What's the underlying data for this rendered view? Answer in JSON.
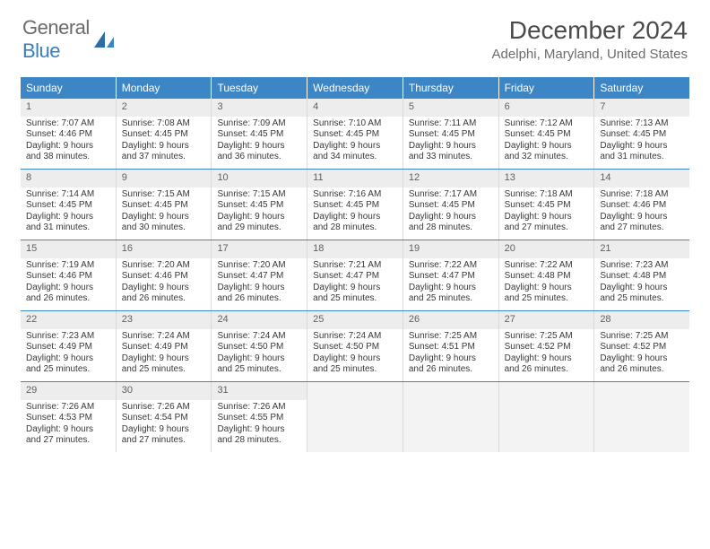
{
  "logo": {
    "text1": "General",
    "text2": "Blue"
  },
  "title": "December 2024",
  "location": "Adelphi, Maryland, United States",
  "colors": {
    "header_bg": "#3d86c6",
    "header_fg": "#ffffff",
    "daynum_bg": "#ededed",
    "cell_border": "#d9d9d9",
    "week_border": "#3d86c6",
    "text": "#383838",
    "logo_gray": "#6b6b6b",
    "logo_blue": "#3a7ebf"
  },
  "typography": {
    "month_fontsize": 28,
    "location_fontsize": 15,
    "dayheader_fontsize": 12,
    "daynum_fontsize": 11,
    "body_fontsize": 10
  },
  "day_headers": [
    "Sunday",
    "Monday",
    "Tuesday",
    "Wednesday",
    "Thursday",
    "Friday",
    "Saturday"
  ],
  "weeks": [
    [
      {
        "n": "1",
        "sr": "7:07 AM",
        "ss": "4:46 PM",
        "dl": "9 hours and 38 minutes."
      },
      {
        "n": "2",
        "sr": "7:08 AM",
        "ss": "4:45 PM",
        "dl": "9 hours and 37 minutes."
      },
      {
        "n": "3",
        "sr": "7:09 AM",
        "ss": "4:45 PM",
        "dl": "9 hours and 36 minutes."
      },
      {
        "n": "4",
        "sr": "7:10 AM",
        "ss": "4:45 PM",
        "dl": "9 hours and 34 minutes."
      },
      {
        "n": "5",
        "sr": "7:11 AM",
        "ss": "4:45 PM",
        "dl": "9 hours and 33 minutes."
      },
      {
        "n": "6",
        "sr": "7:12 AM",
        "ss": "4:45 PM",
        "dl": "9 hours and 32 minutes."
      },
      {
        "n": "7",
        "sr": "7:13 AM",
        "ss": "4:45 PM",
        "dl": "9 hours and 31 minutes."
      }
    ],
    [
      {
        "n": "8",
        "sr": "7:14 AM",
        "ss": "4:45 PM",
        "dl": "9 hours and 31 minutes."
      },
      {
        "n": "9",
        "sr": "7:15 AM",
        "ss": "4:45 PM",
        "dl": "9 hours and 30 minutes."
      },
      {
        "n": "10",
        "sr": "7:15 AM",
        "ss": "4:45 PM",
        "dl": "9 hours and 29 minutes."
      },
      {
        "n": "11",
        "sr": "7:16 AM",
        "ss": "4:45 PM",
        "dl": "9 hours and 28 minutes."
      },
      {
        "n": "12",
        "sr": "7:17 AM",
        "ss": "4:45 PM",
        "dl": "9 hours and 28 minutes."
      },
      {
        "n": "13",
        "sr": "7:18 AM",
        "ss": "4:45 PM",
        "dl": "9 hours and 27 minutes."
      },
      {
        "n": "14",
        "sr": "7:18 AM",
        "ss": "4:46 PM",
        "dl": "9 hours and 27 minutes."
      }
    ],
    [
      {
        "n": "15",
        "sr": "7:19 AM",
        "ss": "4:46 PM",
        "dl": "9 hours and 26 minutes."
      },
      {
        "n": "16",
        "sr": "7:20 AM",
        "ss": "4:46 PM",
        "dl": "9 hours and 26 minutes."
      },
      {
        "n": "17",
        "sr": "7:20 AM",
        "ss": "4:47 PM",
        "dl": "9 hours and 26 minutes."
      },
      {
        "n": "18",
        "sr": "7:21 AM",
        "ss": "4:47 PM",
        "dl": "9 hours and 25 minutes."
      },
      {
        "n": "19",
        "sr": "7:22 AM",
        "ss": "4:47 PM",
        "dl": "9 hours and 25 minutes."
      },
      {
        "n": "20",
        "sr": "7:22 AM",
        "ss": "4:48 PM",
        "dl": "9 hours and 25 minutes."
      },
      {
        "n": "21",
        "sr": "7:23 AM",
        "ss": "4:48 PM",
        "dl": "9 hours and 25 minutes."
      }
    ],
    [
      {
        "n": "22",
        "sr": "7:23 AM",
        "ss": "4:49 PM",
        "dl": "9 hours and 25 minutes."
      },
      {
        "n": "23",
        "sr": "7:24 AM",
        "ss": "4:49 PM",
        "dl": "9 hours and 25 minutes."
      },
      {
        "n": "24",
        "sr": "7:24 AM",
        "ss": "4:50 PM",
        "dl": "9 hours and 25 minutes."
      },
      {
        "n": "25",
        "sr": "7:24 AM",
        "ss": "4:50 PM",
        "dl": "9 hours and 25 minutes."
      },
      {
        "n": "26",
        "sr": "7:25 AM",
        "ss": "4:51 PM",
        "dl": "9 hours and 26 minutes."
      },
      {
        "n": "27",
        "sr": "7:25 AM",
        "ss": "4:52 PM",
        "dl": "9 hours and 26 minutes."
      },
      {
        "n": "28",
        "sr": "7:25 AM",
        "ss": "4:52 PM",
        "dl": "9 hours and 26 minutes."
      }
    ],
    [
      {
        "n": "29",
        "sr": "7:26 AM",
        "ss": "4:53 PM",
        "dl": "9 hours and 27 minutes."
      },
      {
        "n": "30",
        "sr": "7:26 AM",
        "ss": "4:54 PM",
        "dl": "9 hours and 27 minutes."
      },
      {
        "n": "31",
        "sr": "7:26 AM",
        "ss": "4:55 PM",
        "dl": "9 hours and 28 minutes."
      },
      null,
      null,
      null,
      null
    ]
  ],
  "labels": {
    "sunrise": "Sunrise: ",
    "sunset": "Sunset: ",
    "daylight": "Daylight: "
  }
}
